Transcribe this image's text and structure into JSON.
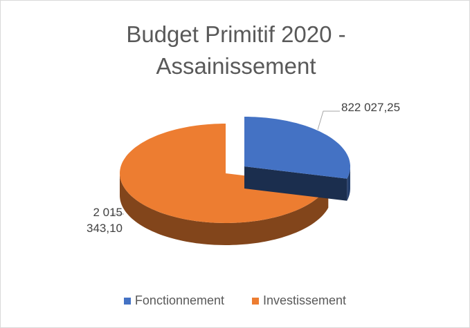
{
  "chart_data": {
    "type": "pie3d",
    "title": "Budget Primitif 2020 - Assainissement",
    "categories": [
      "Fonctionnement",
      "Investissement"
    ],
    "values": [
      822027.25,
      2015343.1
    ],
    "value_labels": [
      "822 027,25",
      "2 015 343,10"
    ],
    "colors": [
      "#4472c4",
      "#ed7d31"
    ],
    "legend": "bottom"
  }
}
